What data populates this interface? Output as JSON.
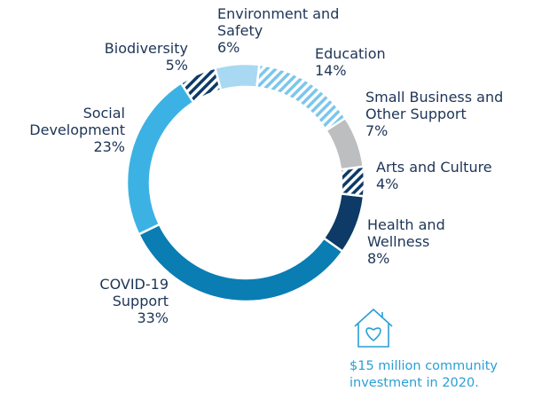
{
  "chart_data": {
    "type": "donut",
    "categories": [
      "Environment and Safety",
      "Education",
      "Small Business and Other Support",
      "Arts and Culture",
      "Health and Wellness",
      "COVID-19 Support",
      "Social Development",
      "Biodiversity"
    ],
    "values": [
      6,
      14,
      7,
      4,
      8,
      33,
      23,
      5
    ],
    "value_labels": [
      "6%",
      "14%",
      "7%",
      "4%",
      "8%",
      "33%",
      "23%",
      "5%"
    ],
    "colors": [
      "#a9d8f2",
      "#7cc6ec",
      "#bcbec0",
      "#0d3a66",
      "#0d3a66",
      "#0a7db3",
      "#3cb2e4",
      "#0d3a66"
    ],
    "hatched": [
      false,
      true,
      false,
      true,
      false,
      false,
      false,
      true
    ],
    "annotation": "$15 million community investment in 2020."
  }
}
